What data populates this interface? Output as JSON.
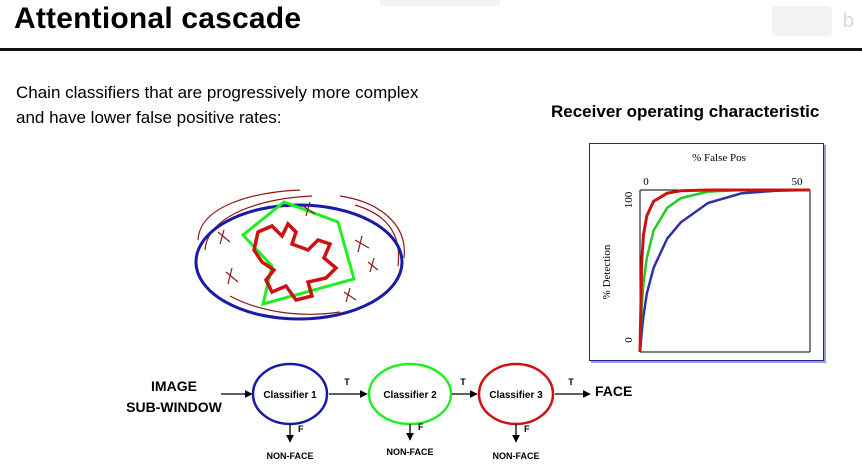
{
  "slide": {
    "title": "Attentional cascade",
    "body_lines": [
      "Chain classifiers that are progressively more complex",
      "and have lower false positive rates:"
    ]
  },
  "roc": {
    "heading": "Receiver operating characteristic",
    "x_label": "% False Pos",
    "y_label": "% Detection",
    "x_tick_start": "0",
    "x_tick_end": "50",
    "y_tick_top": "100",
    "y_tick_bottom": "0"
  },
  "chart_data": {
    "type": "line",
    "title": "Receiver operating characteristic",
    "xlabel": "% False Pos",
    "ylabel": "% Detection",
    "xlim": [
      0,
      50
    ],
    "ylim": [
      0,
      100
    ],
    "x": [
      0,
      0.5,
      1,
      2,
      4,
      8,
      12,
      20,
      30,
      40,
      50
    ],
    "series": [
      {
        "color": "#cc1111",
        "values": [
          0,
          55,
          72,
          84,
          93,
          98,
          99.5,
          100,
          100,
          100,
          100
        ]
      },
      {
        "color": "#22cc22",
        "values": [
          0,
          28,
          42,
          58,
          75,
          89,
          95,
          99,
          100,
          100,
          100
        ]
      },
      {
        "color": "#3030aa",
        "values": [
          0,
          12,
          22,
          36,
          52,
          70,
          80,
          92,
          98,
          99.5,
          100
        ]
      }
    ]
  },
  "cascade": {
    "input_line1": "IMAGE",
    "input_line2": "SUB-WINDOW",
    "classifiers": [
      "Classifier 1",
      "Classifier 2",
      "Classifier 3"
    ],
    "true_label": "T",
    "false_label": "F",
    "reject_label": "NON-FACE",
    "output_label": "FACE"
  },
  "colors": {
    "stage1": "#1a1aa8",
    "stage2": "#22ee22",
    "stage3": "#cc1111",
    "face_region": "#cc1111",
    "candidate_region": "#22ee22",
    "image_region": "#1a1aa8"
  }
}
